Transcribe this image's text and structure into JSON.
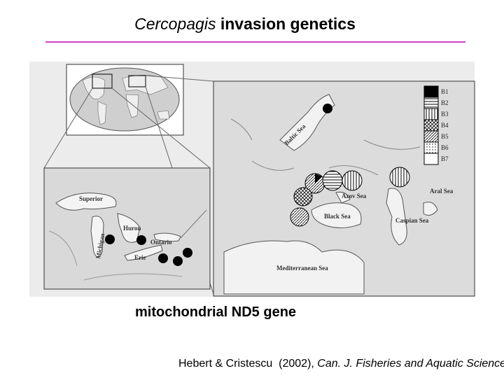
{
  "title": {
    "italic": "Cercopagis",
    "text": "invasion genetics"
  },
  "figure": {
    "great_lakes": [
      "Superior",
      "Huron",
      "Ontario",
      "Michigan",
      "Erie"
    ],
    "seas": [
      "Baltic Sea",
      "Azov Sea",
      "Black Sea",
      "Caspian Sea",
      "Aral Sea",
      "Mediterranean Sea"
    ],
    "legend": [
      "B1",
      "B2",
      "B3",
      "B4",
      "B5",
      "B6",
      "B7"
    ]
  },
  "caption": "mitochondrial ND5 gene",
  "citation": {
    "authors": "Hebert & Cristescu  (2002), ",
    "journal": "Can. J. Fisheries and Aquatic Sciences"
  }
}
